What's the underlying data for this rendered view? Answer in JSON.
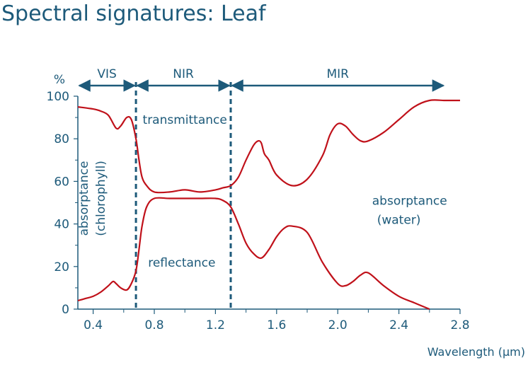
{
  "page": {
    "title": "Spectral signatures: Leaf"
  },
  "colors": {
    "text": "#1d5a7a",
    "curve": "#c0111a",
    "axis": "#1d5a7a"
  },
  "chart_data": {
    "type": "line",
    "title": "Spectral signatures: Leaf",
    "xlabel": "Wavelength (µm)",
    "ylabel": "%",
    "xlim": [
      0.3,
      2.8
    ],
    "ylim": [
      0,
      100
    ],
    "x_ticks": [
      0.4,
      0.8,
      1.2,
      1.6,
      2.0,
      2.4,
      2.8
    ],
    "x_tick_labels": [
      "0.4",
      "0.8",
      "1.2",
      "1.6",
      "2.0",
      "2.4",
      "2.8"
    ],
    "y_ticks": [
      0,
      20,
      40,
      60,
      80,
      100
    ],
    "y_tick_labels": [
      "0",
      "20",
      "40",
      "60",
      "80",
      "100"
    ],
    "grid": false,
    "regions": [
      {
        "label": "VIS",
        "from": 0.3,
        "to": 0.68
      },
      {
        "label": "NIR",
        "from": 0.68,
        "to": 1.3
      },
      {
        "label": "MIR",
        "from": 1.3,
        "to": 2.7
      }
    ],
    "boundaries": [
      0.68,
      1.3
    ],
    "series": [
      {
        "x": [
          0.3,
          0.4,
          0.45,
          0.5,
          0.55,
          0.58,
          0.62,
          0.65,
          0.68,
          0.7,
          0.72,
          0.75,
          0.8,
          0.9,
          1.0,
          1.1,
          1.2,
          1.25,
          1.3,
          1.35,
          1.4,
          1.45,
          1.48,
          1.5,
          1.52,
          1.55,
          1.6,
          1.7,
          1.8,
          1.9,
          1.95,
          2.0,
          2.05,
          2.1,
          2.15,
          2.2,
          2.3,
          2.4,
          2.5,
          2.6,
          2.7,
          2.8
        ],
        "values": [
          95,
          94,
          93,
          91,
          85,
          86,
          90,
          89,
          80,
          70,
          62,
          58,
          55,
          55,
          56,
          55,
          56,
          57,
          58,
          62,
          70,
          77,
          79,
          78,
          73,
          70,
          63,
          58,
          61,
          72,
          82,
          87,
          86,
          82,
          79,
          79,
          83,
          89,
          95,
          98,
          98,
          98
        ]
      },
      {
        "x": [
          0.3,
          0.35,
          0.4,
          0.45,
          0.5,
          0.53,
          0.55,
          0.58,
          0.62,
          0.65,
          0.68,
          0.7,
          0.72,
          0.75,
          0.8,
          0.9,
          1.0,
          1.1,
          1.2,
          1.25,
          1.3,
          1.35,
          1.4,
          1.45,
          1.5,
          1.55,
          1.6,
          1.65,
          1.7,
          1.8,
          1.9,
          2.0,
          2.05,
          2.1,
          2.15,
          2.2,
          2.3,
          2.4,
          2.5,
          2.6
        ],
        "values": [
          4,
          5,
          6,
          8,
          11,
          13,
          12,
          10,
          9,
          12,
          18,
          28,
          39,
          48,
          52,
          52,
          52,
          52,
          52,
          51,
          48,
          40,
          31,
          26,
          24,
          28,
          34,
          38,
          39,
          36,
          22,
          12,
          11,
          13,
          16,
          17,
          11,
          6,
          3,
          0
        ]
      }
    ],
    "annotations": [
      {
        "text": "transmittance",
        "x": 1.0,
        "y": 87
      },
      {
        "text": "reflectance",
        "x": 0.98,
        "y": 20
      },
      {
        "text": "absorptance",
        "x": 0.43,
        "y": 52,
        "line2": "(chlorophyll)",
        "rotated": true
      },
      {
        "text": "absorptance",
        "x": 2.47,
        "y": 49,
        "line2": "(water)"
      }
    ]
  }
}
